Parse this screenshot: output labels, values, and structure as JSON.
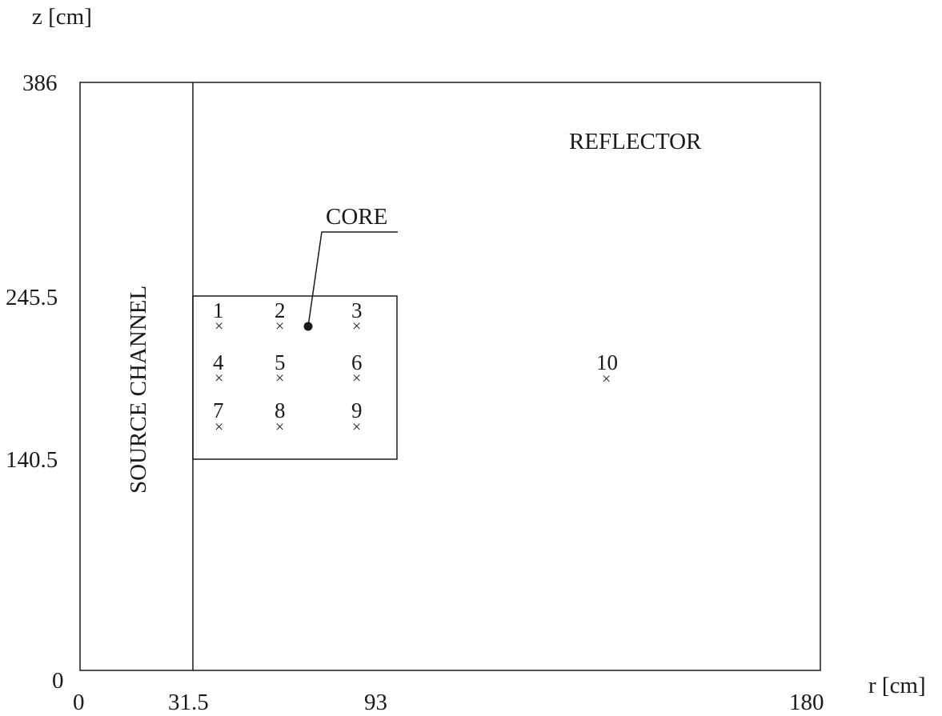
{
  "axes": {
    "z_label": "z [cm]",
    "r_label": "r [cm]",
    "z_ticks": [
      "386",
      "245.5",
      "140.5",
      "0"
    ],
    "r_ticks": [
      "0",
      "31.5",
      "93",
      "180"
    ]
  },
  "regions": {
    "reflector": "REFLECTOR",
    "source_channel": "SOURCE CHANNEL",
    "core": "CORE"
  },
  "points": {
    "p1": "1",
    "p2": "2",
    "p3": "3",
    "p4": "4",
    "p5": "5",
    "p6": "6",
    "p7": "7",
    "p8": "8",
    "p9": "9",
    "p10": "10"
  },
  "marker_glyph": "×"
}
